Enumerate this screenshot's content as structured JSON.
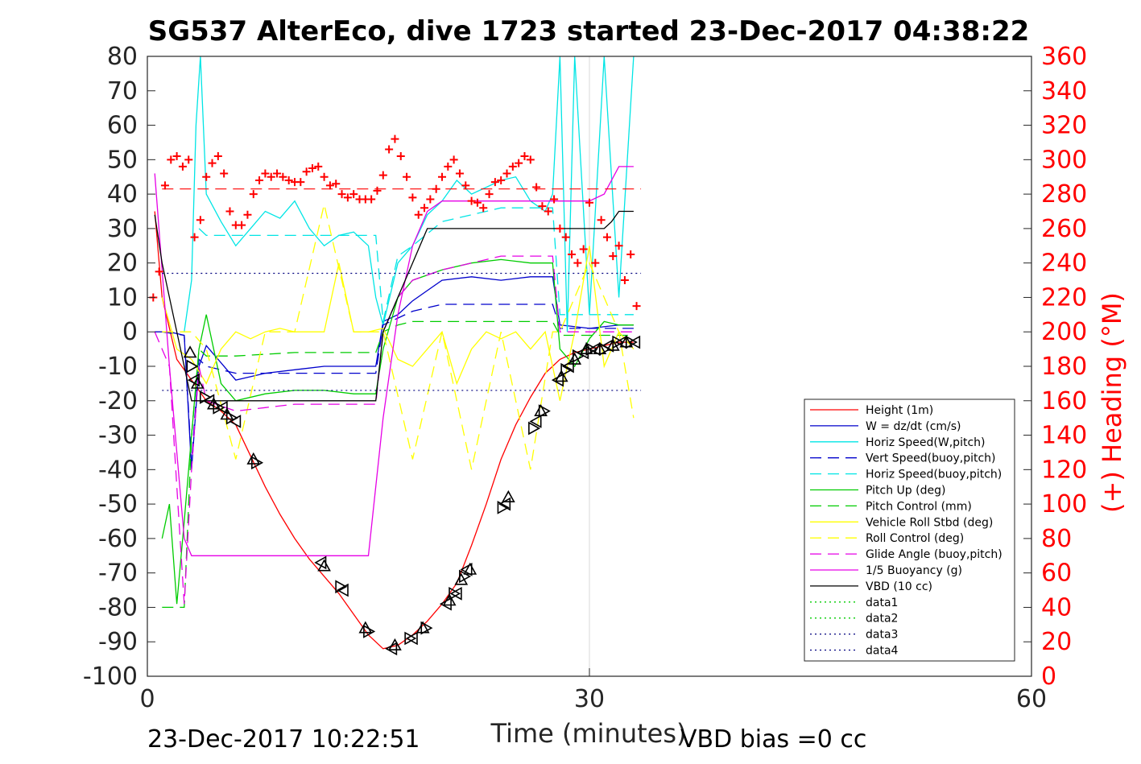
{
  "chart_data": {
    "type": "line",
    "title": "SG537 AlterEco, dive 1723 started 23-Dec-2017 04:38:22",
    "xlabel": "Time (minutes)",
    "ylabel": "",
    "y2label": "(+) Heading (°M)",
    "xlim": [
      0,
      60
    ],
    "ylim": [
      -100,
      80
    ],
    "y2lim": [
      0,
      360
    ],
    "x_ticks": [
      "0",
      "30",
      "60"
    ],
    "y_ticks": [
      "80",
      "70",
      "60",
      "50",
      "40",
      "30",
      "20",
      "10",
      "0",
      "-10",
      "-20",
      "-30",
      "-40",
      "-50",
      "-60",
      "-70",
      "-80",
      "-90",
      "-100"
    ],
    "y2_ticks": [
      "360",
      "340",
      "320",
      "300",
      "280",
      "260",
      "240",
      "220",
      "200",
      "180",
      "160",
      "140",
      "120",
      "100",
      "80",
      "60",
      "40",
      "20",
      "0"
    ],
    "grid": "x-only",
    "legend_position": "lower-right",
    "footer_left": "23-Dec-2017 10:22:51",
    "footer_right": "VBD bias =0 cc",
    "colors": {
      "red": "#ff0000",
      "blue": "#0000cc",
      "cyan": "#00e5e5",
      "green": "#00cc00",
      "yellow": "#ffff00",
      "magenta": "#e600e6",
      "black": "#000000",
      "navy": "#00007f"
    },
    "series": [
      {
        "name": "Height (1m)",
        "color": "red",
        "style": "solid",
        "x": [
          0.5,
          1,
          2,
          3,
          4,
          5,
          6,
          7,
          8,
          9,
          10,
          11,
          12,
          13,
          14,
          15,
          16,
          17,
          18,
          19,
          20,
          21,
          22,
          23,
          24,
          25,
          26,
          27,
          28,
          29,
          30,
          31,
          32,
          33
        ],
        "y": [
          35,
          10,
          -8,
          -14,
          -20,
          -23,
          -27,
          -36,
          -45,
          -53,
          -60,
          -66,
          -71,
          -76,
          -82,
          -88,
          -92,
          -91,
          -88,
          -84,
          -79,
          -73,
          -62,
          -50,
          -37,
          -27,
          -19,
          -12,
          -8,
          -6,
          -5,
          -4,
          -3,
          -3
        ]
      },
      {
        "name": "W = dz/dt (cm/s)",
        "color": "blue",
        "style": "solid",
        "x": [
          0.5,
          1.5,
          2.5,
          3,
          3.5,
          4,
          5,
          6,
          8,
          10,
          12,
          14,
          15.5,
          16,
          17,
          18,
          19,
          20,
          22,
          24,
          26,
          27.5,
          28,
          30,
          32,
          33
        ],
        "y": [
          0,
          0,
          -1,
          -40,
          -10,
          -4,
          -9,
          -14,
          -12,
          -11,
          -10,
          -10,
          -10,
          3,
          5,
          9,
          12,
          15,
          16,
          15,
          16,
          16,
          2,
          1,
          2,
          2
        ]
      },
      {
        "name": "Horiz Speed(W,pitch)",
        "color": "cyan",
        "style": "solid",
        "x": [
          2.5,
          3,
          3.3,
          3.6,
          4,
          5,
          6,
          7,
          8,
          9,
          10,
          11,
          12,
          13,
          14,
          15,
          15.5,
          16,
          17,
          18,
          19,
          20,
          21,
          22,
          23,
          24,
          25,
          26,
          27,
          27.5,
          28,
          28.5,
          29,
          30,
          31,
          32,
          33
        ],
        "y": [
          0,
          15,
          60,
          80,
          40,
          32,
          25,
          30,
          35,
          33,
          38,
          30,
          25,
          28,
          29,
          25,
          10,
          2,
          20,
          25,
          34,
          38,
          44,
          40,
          42,
          44,
          45,
          38,
          35,
          40,
          80,
          0,
          80,
          5,
          80,
          10,
          80
        ]
      },
      {
        "name": "Vert Speed(buoy,pitch)",
        "color": "blue",
        "style": "dashed",
        "x": [
          1,
          2.5,
          3,
          3.5,
          4,
          6,
          10,
          14,
          15.5,
          16,
          17,
          18,
          20,
          22,
          24,
          26,
          27.5,
          28,
          30,
          32,
          33
        ],
        "y": [
          0,
          -1,
          -38,
          -8,
          -10,
          -12,
          -12,
          -12,
          -12,
          2,
          4,
          6,
          8,
          8,
          8,
          8,
          8,
          1,
          1,
          1,
          1
        ]
      },
      {
        "name": "Horiz Speed(buoy,pitch)",
        "color": "cyan",
        "style": "dashed",
        "x": [
          3.5,
          4,
          6,
          8,
          10,
          12,
          14,
          15.5,
          16,
          17,
          18,
          20,
          22,
          24,
          26,
          27.5,
          28,
          30,
          32,
          33
        ],
        "y": [
          30,
          28,
          28,
          28,
          28,
          28,
          28,
          28,
          3,
          22,
          25,
          32,
          34,
          36,
          36,
          36,
          5,
          5,
          5,
          5
        ]
      },
      {
        "name": "Pitch Up (deg)",
        "color": "green",
        "style": "solid",
        "x": [
          1,
          1.5,
          2,
          2.5,
          3,
          3.5,
          4,
          5,
          6,
          8,
          10,
          12,
          14,
          15.5,
          16,
          17,
          18,
          20,
          22,
          24,
          26,
          27.5,
          28,
          29,
          30,
          31,
          32,
          33
        ],
        "y": [
          -60,
          -50,
          -79,
          -55,
          -30,
          -5,
          5,
          -15,
          -20,
          -18,
          -17,
          -17,
          -18,
          -18,
          -5,
          10,
          15,
          18,
          20,
          21,
          20,
          20,
          -5,
          -10,
          -2,
          3,
          2,
          2
        ]
      },
      {
        "name": "Pitch Control (mm)",
        "color": "green",
        "style": "dashed",
        "x": [
          1,
          2.5,
          3,
          3.5,
          4,
          6,
          10,
          14,
          15.5,
          16,
          17,
          18,
          20,
          22,
          24,
          26,
          27.5,
          28,
          30,
          32,
          33
        ],
        "y": [
          -80,
          -80,
          -30,
          -5,
          -7,
          -7,
          -6,
          -6,
          -6,
          0,
          2,
          3,
          3,
          3,
          3,
          3,
          3,
          -1,
          -1,
          -1,
          -1
        ]
      },
      {
        "name": "Vehicle Roll Stbd (deg)",
        "color": "yellow",
        "style": "solid",
        "x": [
          1,
          2,
          3,
          4,
          5,
          6,
          7,
          8,
          9,
          10,
          11,
          12,
          13,
          14,
          15,
          16,
          17,
          18,
          19,
          20,
          21,
          22,
          23,
          24,
          25,
          26,
          27,
          28,
          29,
          30,
          31,
          32,
          33
        ],
        "y": [
          10,
          -5,
          -8,
          -15,
          -5,
          0,
          -2,
          0,
          1,
          0,
          0,
          0,
          20,
          0,
          0,
          1,
          -8,
          -10,
          -5,
          0,
          -15,
          -5,
          0,
          -2,
          0,
          -5,
          0,
          -20,
          0,
          25,
          -10,
          0,
          -5
        ]
      },
      {
        "name": "Roll Control (deg)",
        "color": "yellow",
        "style": "dashed",
        "x": [
          1,
          3,
          4,
          6,
          8,
          10,
          12,
          14,
          16,
          18,
          20,
          22,
          24,
          26,
          27.5,
          28,
          30,
          32,
          33
        ],
        "y": [
          0,
          0,
          -5,
          -37,
          0,
          0,
          37,
          0,
          0,
          -37,
          0,
          -40,
          0,
          -40,
          0,
          0,
          20,
          0,
          -25
        ]
      },
      {
        "name": "Glide Angle (buoy,pitch)",
        "color": "magenta",
        "style": "dashed",
        "x": [
          0.5,
          1.5,
          2,
          2.5,
          3,
          3.5,
          4,
          6,
          8,
          10,
          12,
          14,
          15.5,
          16,
          17,
          18,
          20,
          22,
          24,
          26,
          27.5,
          28,
          30,
          32,
          33
        ],
        "y": [
          0,
          -10,
          -45,
          -79,
          -40,
          -10,
          -20,
          -23,
          -22,
          -21,
          -21,
          -21,
          -21,
          0,
          10,
          15,
          18,
          20,
          22,
          22,
          22,
          0,
          0,
          0,
          0
        ]
      },
      {
        "name": "1/5 Buoyancy (g)",
        "color": "magenta",
        "style": "solid",
        "x": [
          0.5,
          1.5,
          2.5,
          3,
          3.5,
          4,
          6,
          8,
          10,
          12,
          14,
          15,
          16,
          17,
          18,
          19,
          20,
          22,
          24,
          26,
          27.5,
          28,
          30,
          31,
          32,
          33
        ],
        "y": [
          46,
          -10,
          -60,
          -65,
          -65,
          -65,
          -65,
          -65,
          -65,
          -65,
          -65,
          -65,
          -25,
          5,
          25,
          35,
          38,
          38,
          38,
          38,
          38,
          38,
          38,
          40,
          48,
          48
        ]
      },
      {
        "name": "VBD (10 cc)",
        "color": "black",
        "style": "solid",
        "x": [
          0.5,
          1,
          1.5,
          2,
          2.5,
          3,
          4,
          6,
          8,
          10,
          12,
          14,
          15,
          15.5,
          16,
          17,
          18,
          19,
          20,
          22,
          24,
          26,
          28,
          30,
          31,
          31.5,
          32,
          33
        ],
        "y": [
          34,
          20,
          10,
          0,
          -10,
          -20,
          -20,
          -20,
          -20,
          -20,
          -20,
          -20,
          -20,
          -20,
          0,
          10,
          20,
          30,
          30,
          30,
          30,
          30,
          30,
          30,
          30,
          32,
          35,
          35
        ]
      },
      {
        "name": "data1",
        "color": "green",
        "style": "dotted",
        "x": [],
        "y": []
      },
      {
        "name": "data2",
        "color": "green",
        "style": "dotted",
        "x": [],
        "y": []
      },
      {
        "name": "data3",
        "color": "navy",
        "style": "dotted",
        "x": [],
        "y": []
      },
      {
        "name": "data4",
        "color": "navy",
        "style": "dotted",
        "x": [],
        "y": []
      }
    ],
    "reference_lines": [
      {
        "color": "navy",
        "style": "dotted",
        "y": 17,
        "x": [
          1,
          33.5
        ]
      },
      {
        "color": "navy",
        "style": "dotted",
        "y": -17,
        "x": [
          1,
          33.5
        ]
      },
      {
        "color": "red",
        "style": "dashed",
        "y2": 283,
        "x": [
          1,
          33.5
        ]
      }
    ],
    "heading_points": {
      "x": [
        0.4,
        0.8,
        1.2,
        1.6,
        2,
        2.4,
        2.8,
        3.2,
        3.6,
        4,
        4.4,
        4.8,
        5.2,
        5.6,
        6,
        6.4,
        6.8,
        7.2,
        7.6,
        8,
        8.4,
        8.8,
        9.2,
        9.6,
        10,
        10.4,
        10.8,
        11.2,
        11.6,
        12,
        12.4,
        12.8,
        13.2,
        13.6,
        14,
        14.4,
        14.8,
        15.2,
        15.6,
        16,
        16.4,
        16.8,
        17.2,
        17.6,
        18,
        18.4,
        18.8,
        19.2,
        19.6,
        20,
        20.4,
        20.8,
        21.2,
        21.6,
        22,
        22.4,
        22.8,
        23.2,
        23.6,
        24,
        24.4,
        24.8,
        25.2,
        25.6,
        26,
        26.4,
        26.8,
        27.2,
        27.6,
        28,
        28.4,
        28.8,
        29.2,
        29.6,
        30,
        30.4,
        30.8,
        31.2,
        31.6,
        32,
        32.4,
        32.8,
        33.2
      ],
      "y": [
        220,
        235,
        285,
        300,
        302,
        296,
        300,
        255,
        265,
        290,
        298,
        302,
        292,
        270,
        262,
        262,
        268,
        280,
        288,
        292,
        290,
        292,
        290,
        288,
        287,
        287,
        293,
        295,
        296,
        290,
        285,
        286,
        280,
        278,
        280,
        277,
        277,
        277,
        282,
        291,
        306,
        312,
        302,
        290,
        278,
        268,
        272,
        277,
        283,
        290,
        296,
        300,
        292,
        285,
        276,
        275,
        272,
        280,
        287,
        288,
        292,
        296,
        298,
        302,
        300,
        284,
        273,
        270,
        277,
        260,
        255,
        245,
        240,
        248,
        275,
        240,
        265,
        255,
        244,
        250,
        230,
        245,
        215
      ]
    },
    "markers": {
      "shape": "triangle",
      "x": [
        2.9,
        3,
        3.2,
        3.4,
        3.9,
        4.2,
        4.5,
        4.8,
        5.1,
        5.4,
        5.7,
        6,
        7.2,
        7.4,
        11.8,
        12,
        13.1,
        13.3,
        14.8,
        15,
        16.6,
        16.8,
        17.8,
        18,
        18.7,
        18.9,
        20.3,
        20.5,
        20.8,
        21,
        21.3,
        21.5,
        21.7,
        21.9,
        24.1,
        24.3,
        24.5,
        26.2,
        26.4,
        26.7,
        26.9,
        27.9,
        28.1,
        28.4,
        28.6,
        29,
        29.2,
        29.6,
        29.8,
        30.1,
        30.4,
        30.7,
        31,
        31.3,
        31.6,
        31.9,
        32.2,
        32.5,
        32.8,
        33.1
      ],
      "y": [
        -6,
        -10,
        -14,
        -15,
        -19,
        -20,
        -21,
        -22,
        -22,
        -24,
        -25,
        -26,
        -37,
        -38,
        -67,
        -68,
        -74,
        -75,
        -86,
        -87,
        -92,
        -91,
        -89,
        -89,
        -86,
        -86,
        -79,
        -78,
        -76,
        -76,
        -72,
        -71,
        -69,
        -69,
        -51,
        -50,
        -48,
        -28,
        -26,
        -23,
        -23,
        -14,
        -13,
        -11,
        -10,
        -8,
        -7,
        -6,
        -5,
        -5,
        -5,
        -5,
        -5,
        -4,
        -4,
        -3,
        -3,
        -3,
        -3,
        -3
      ]
    }
  }
}
